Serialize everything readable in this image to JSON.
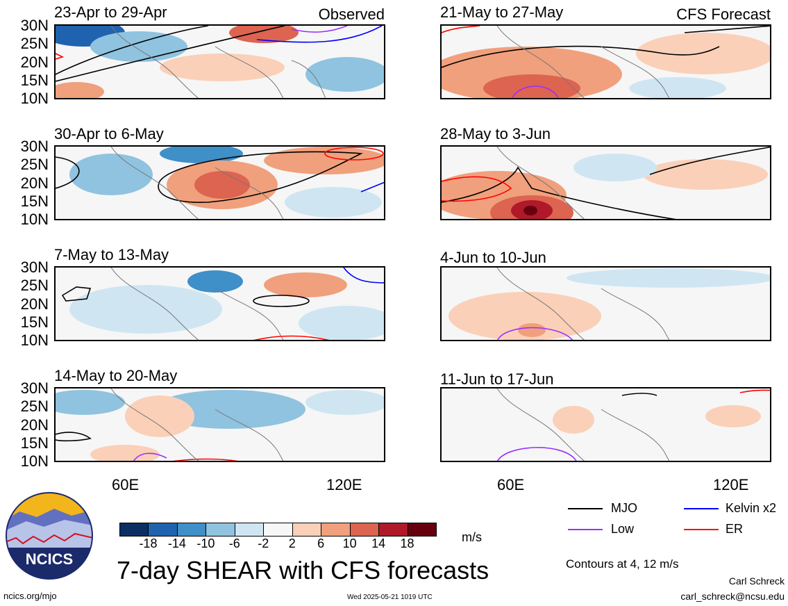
{
  "panels": {
    "p1": {
      "title": "23-Apr to 29-Apr",
      "tag": "Observed"
    },
    "p2": {
      "title": "30-Apr to 6-May",
      "tag": ""
    },
    "p3": {
      "title": "7-May to 13-May",
      "tag": ""
    },
    "p4": {
      "title": "14-May to 20-May",
      "tag": ""
    },
    "p5": {
      "title": "21-May to 27-May",
      "tag": "CFS Forecast"
    },
    "p6": {
      "title": "28-May to 3-Jun",
      "tag": ""
    },
    "p7": {
      "title": "4-Jun to 10-Jun",
      "tag": ""
    },
    "p8": {
      "title": "11-Jun to 17-Jun",
      "tag": ""
    }
  },
  "lat_labels": [
    "30N",
    "25N",
    "20N",
    "15N",
    "10N"
  ],
  "lon_labels": [
    "60E",
    "120E"
  ],
  "legend": {
    "mjo": "MJO",
    "kelvin": "Kelvin x2",
    "low": "Low",
    "er": "ER",
    "colors": {
      "mjo": "#000000",
      "kelvin": "#0000ff",
      "low": "#9b30ff",
      "er": "#ff0000"
    }
  },
  "colorbar": {
    "ticks": [
      "-18",
      "-14",
      "-10",
      "-6",
      "-2",
      "2",
      "6",
      "10",
      "14",
      "18"
    ],
    "colors": [
      "#0b2e63",
      "#1f63b0",
      "#3f8fc8",
      "#8fc3e0",
      "#cfe6f2",
      "#f7f7f7",
      "#fbd0b8",
      "#f0a07c",
      "#dc6450",
      "#b0192a",
      "#67000d"
    ],
    "units": "m/s"
  },
  "title": "7-day SHEAR with CFS forecasts",
  "contours_note": "Contours at 4, 12 m/s",
  "author": "Carl Schreck",
  "email": "carl_schreck@ncsu.edu",
  "url": "ncics.org/mjo",
  "timestamp": "Wed 2025-05-21 1019 UTC",
  "logo_text": "NCICS"
}
